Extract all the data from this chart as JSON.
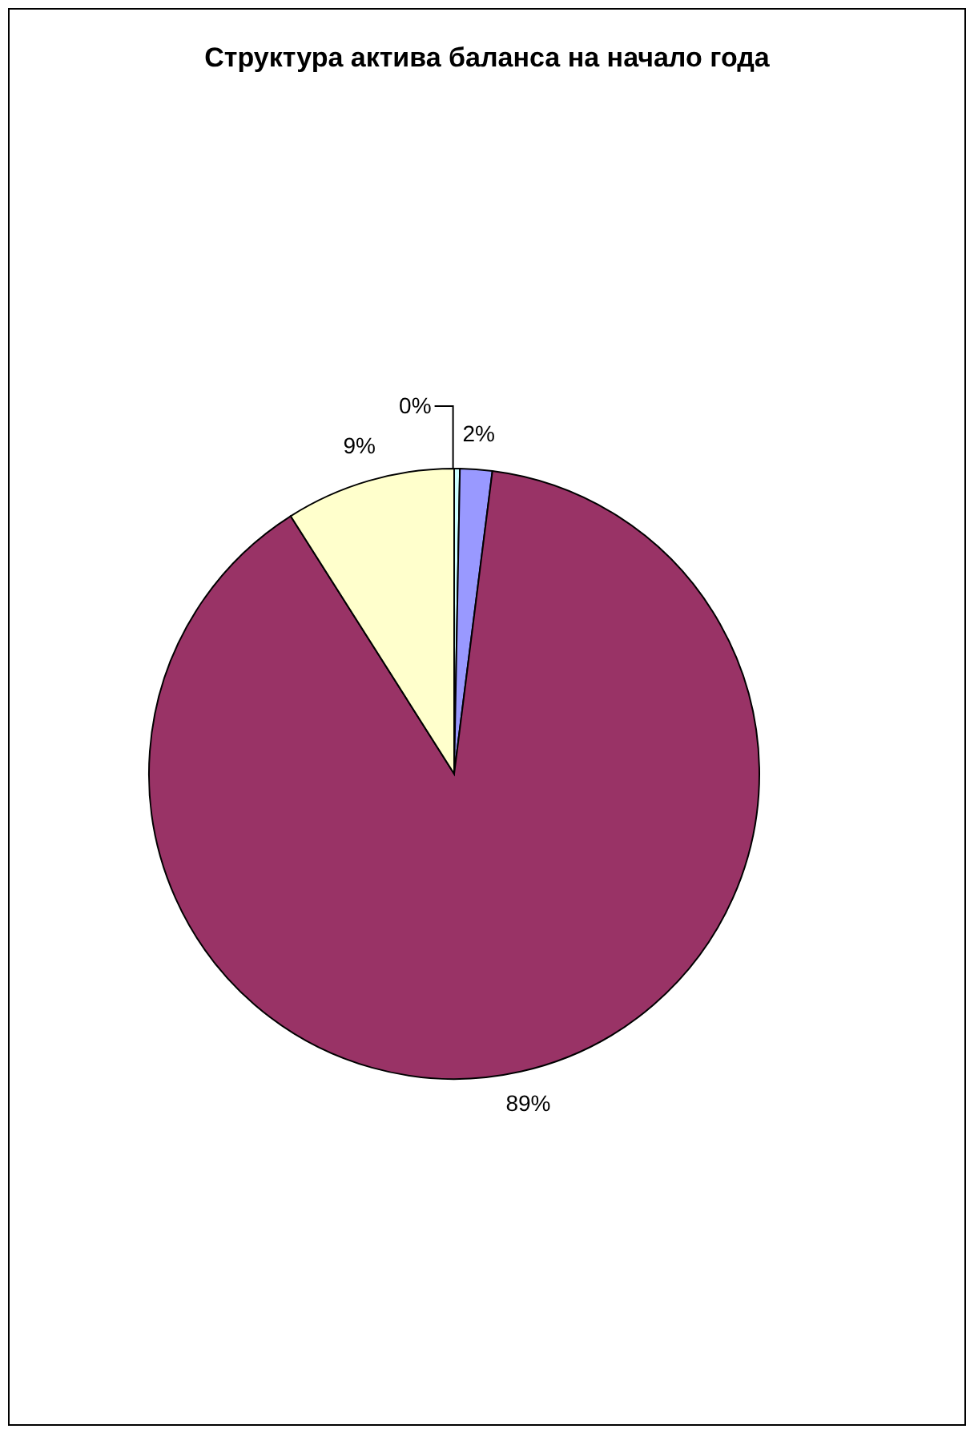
{
  "chart_data": {
    "type": "pie",
    "title": "Структура актива баланса на начало года",
    "categories": [
      null,
      null,
      null,
      null
    ],
    "values": [
      0.3,
      1.7,
      89,
      9
    ],
    "value_labels": [
      "0%",
      "2%",
      "89%",
      "9%"
    ],
    "colors": [
      "#ccffff",
      "#9999ff",
      "#993366",
      "#ffffcc"
    ]
  }
}
